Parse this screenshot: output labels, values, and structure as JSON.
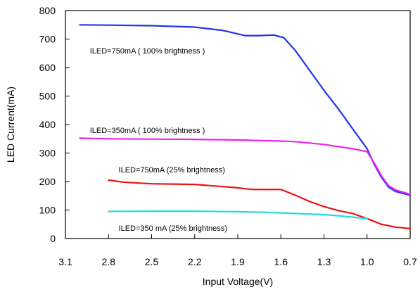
{
  "chart_data": {
    "type": "line",
    "title": "",
    "xlabel": "Input Voltage(V)",
    "ylabel": "LED Current(mA)",
    "x_reversed": true,
    "xlim": [
      3.1,
      0.7
    ],
    "ylim": [
      0,
      800
    ],
    "x_ticks": [
      "3.1",
      "2.8",
      "2.5",
      "2.2",
      "1.9",
      "1.6",
      "1.3",
      "1.0",
      "0.7"
    ],
    "y_ticks": [
      "0",
      "100",
      "200",
      "300",
      "400",
      "500",
      "600",
      "700",
      "800"
    ],
    "grid": false,
    "series": [
      {
        "color": "#2233ee",
        "x": [
          3.0,
          2.8,
          2.5,
          2.2,
          2.0,
          1.85,
          1.75,
          1.65,
          1.58,
          1.5,
          1.4,
          1.3,
          1.2,
          1.1,
          1.0,
          0.95,
          0.9,
          0.85,
          0.8,
          0.7
        ],
        "y": [
          750,
          749,
          747,
          742,
          730,
          712,
          712,
          714,
          705,
          660,
          590,
          520,
          455,
          385,
          315,
          260,
          215,
          180,
          165,
          152
        ]
      },
      {
        "color": "#ee22ee",
        "x": [
          3.0,
          2.8,
          2.5,
          2.2,
          1.9,
          1.6,
          1.5,
          1.3,
          1.1,
          1.0,
          0.95,
          0.9,
          0.85,
          0.8,
          0.7
        ],
        "y": [
          352,
          350,
          349,
          348,
          346,
          342,
          340,
          330,
          315,
          305,
          265,
          220,
          185,
          170,
          155
        ]
      },
      {
        "color": "#ee1111",
        "x": [
          2.8,
          2.7,
          2.5,
          2.2,
          2.0,
          1.9,
          1.8,
          1.6,
          1.5,
          1.4,
          1.3,
          1.2,
          1.1,
          1.0,
          0.9,
          0.8,
          0.7
        ],
        "y": [
          205,
          198,
          192,
          190,
          182,
          178,
          172,
          172,
          152,
          130,
          112,
          98,
          88,
          70,
          50,
          40,
          35
        ]
      },
      {
        "color": "#22dddd",
        "x": [
          2.8,
          2.5,
          2.2,
          1.9,
          1.7,
          1.6,
          1.5,
          1.4,
          1.3,
          1.2,
          1.1,
          1.0
        ],
        "y": [
          95,
          96,
          96,
          94,
          92,
          90,
          88,
          86,
          84,
          80,
          75,
          70
        ]
      }
    ],
    "annotations": [
      {
        "text": "ILED=750mA ( 100% brightness )",
        "x": 2.93,
        "y": 650
      },
      {
        "text": "ILED=350mA ( 100% brightness )",
        "x": 2.93,
        "y": 370
      },
      {
        "text": "ILED=750mA (25% brightness)",
        "x": 2.73,
        "y": 232
      },
      {
        "text": "ILED=350 mA (25% brightness)",
        "x": 2.73,
        "y": 27
      }
    ]
  }
}
